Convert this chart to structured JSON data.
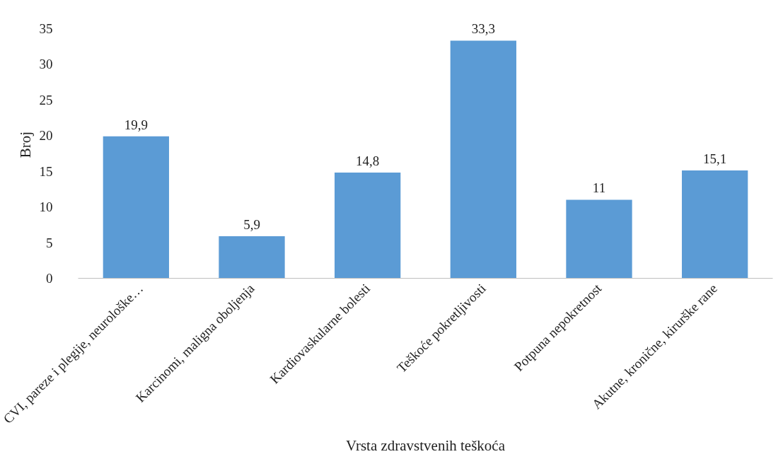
{
  "chart_data": {
    "type": "bar",
    "categories": [
      "CVI, pareze i plegije, neurološke…",
      "Karcinomi, maligna oboljenja",
      "Kardiovaskularne bolesti",
      "Teškoće pokretljivosti",
      "Potpuna nepokretnost",
      "Akutne, kronične, kirurške rane"
    ],
    "values": [
      19.9,
      5.9,
      14.8,
      33.3,
      11,
      15.1
    ],
    "value_labels": [
      "19,9",
      "5,9",
      "14,8",
      "33,3",
      "11",
      "15,1"
    ],
    "color": "#5b9bd5",
    "xlabel": "Vrsta zdravstvenih teškoća",
    "ylabel": "Broj",
    "ylim": [
      0,
      35
    ],
    "yticks": [
      0,
      5,
      10,
      15,
      20,
      25,
      30,
      35
    ],
    "grid": false
  }
}
